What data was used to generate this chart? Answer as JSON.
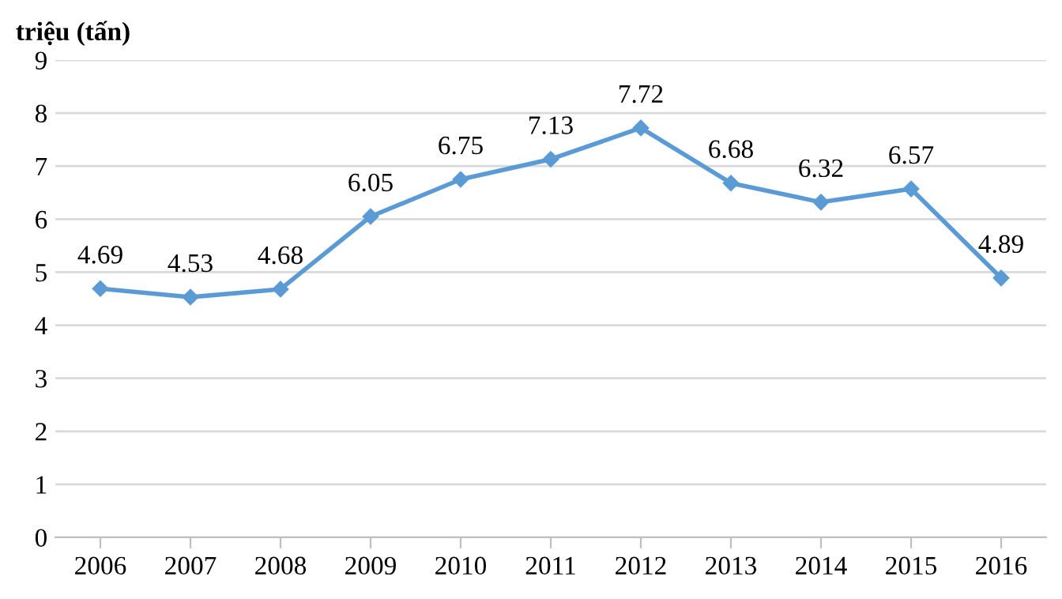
{
  "chart_data": {
    "type": "line",
    "ylabel": "triệu (tấn)",
    "categories": [
      "2006",
      "2007",
      "2008",
      "2009",
      "2010",
      "2011",
      "2012",
      "2013",
      "2014",
      "2015",
      "2016"
    ],
    "series": [
      {
        "color": "#5b9bd5",
        "values": [
          4.69,
          4.53,
          4.68,
          6.05,
          6.75,
          7.13,
          7.72,
          6.68,
          6.32,
          6.57,
          4.89
        ]
      }
    ],
    "ylim": [
      0,
      9
    ],
    "yticks": [
      0,
      1,
      2,
      3,
      4,
      5,
      6,
      7,
      8,
      9
    ],
    "grid": "y",
    "marker": "diamond",
    "line_style": "solid",
    "data_labels": true,
    "legend": false
  }
}
